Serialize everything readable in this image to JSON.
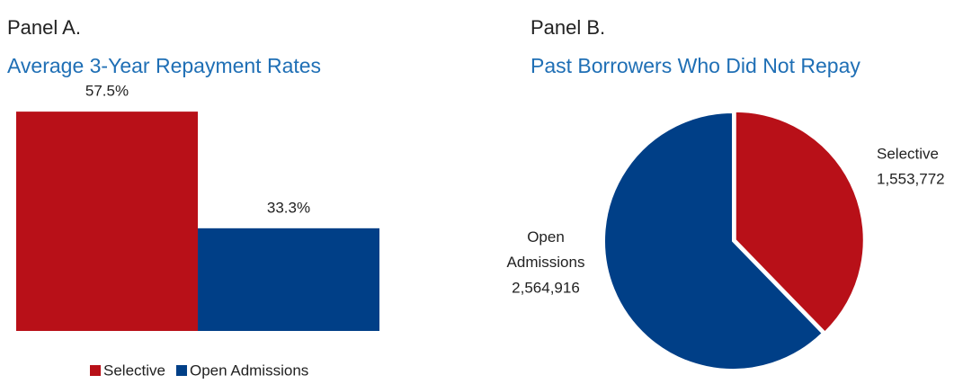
{
  "chart_data": [
    {
      "type": "bar",
      "panel": "Panel A.",
      "title": "Average 3-Year Repayment Rates",
      "categories": [
        null
      ],
      "series": [
        {
          "name": "Selective",
          "color": "#b81018",
          "values": [
            57.5
          ],
          "value_labels": [
            "57.5%"
          ]
        },
        {
          "name": "Open Admissions",
          "color": "#003f87",
          "values": [
            33.3
          ],
          "value_labels": [
            "33.3%"
          ]
        }
      ],
      "ylim": [
        12,
        62
      ],
      "legend": "bottom"
    },
    {
      "type": "pie",
      "panel": "Panel B.",
      "title": "Past Borrowers Who Did Not Repay",
      "categories": [
        "Selective",
        "Open Admissions"
      ],
      "values": [
        1553772,
        2564916
      ],
      "value_labels": [
        "1,553,772",
        "2,564,916"
      ],
      "colors": [
        "#b81018",
        "#003f87"
      ]
    }
  ]
}
